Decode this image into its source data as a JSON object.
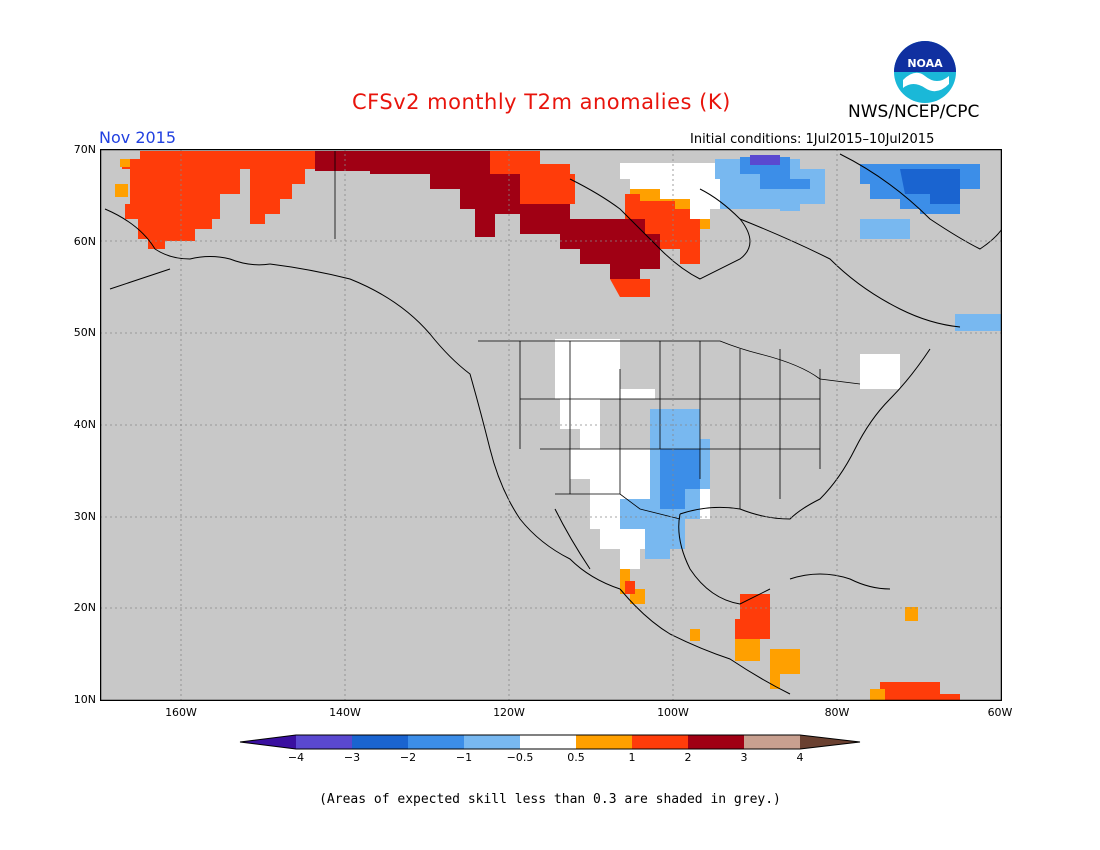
{
  "header": {
    "title": "CFSv2 monthly T2m anomalies (K)",
    "org": "NWS/NCEP/CPC",
    "period": "Nov 2015",
    "initial_conditions": "Initial conditions: 1Jul2015–10Jul2015",
    "logo_text": "NOAA"
  },
  "axes": {
    "lat_labels": [
      "70N",
      "60N",
      "50N",
      "40N",
      "30N",
      "20N",
      "10N"
    ],
    "lon_labels": [
      "160W",
      "140W",
      "120W",
      "100W",
      "80W",
      "60W"
    ]
  },
  "colorbar": {
    "ticks": [
      "−4",
      "−3",
      "−2",
      "−1",
      "−0.5",
      "0.5",
      "1",
      "2",
      "3",
      "4"
    ],
    "colors": [
      "#3a0fa0",
      "#5a48d0",
      "#1a64d0",
      "#3c8ee8",
      "#78b8f0",
      "#ffffff",
      "#ffa000",
      "#ff3c0a",
      "#a00014",
      "#c8a090",
      "#6a4030"
    ]
  },
  "map_colors": {
    "background": "#c8c8c8",
    "coast": "#000000",
    "grid": "#888888"
  },
  "footnote": "(Areas of expected skill less than 0.3 are shaded in grey.)"
}
